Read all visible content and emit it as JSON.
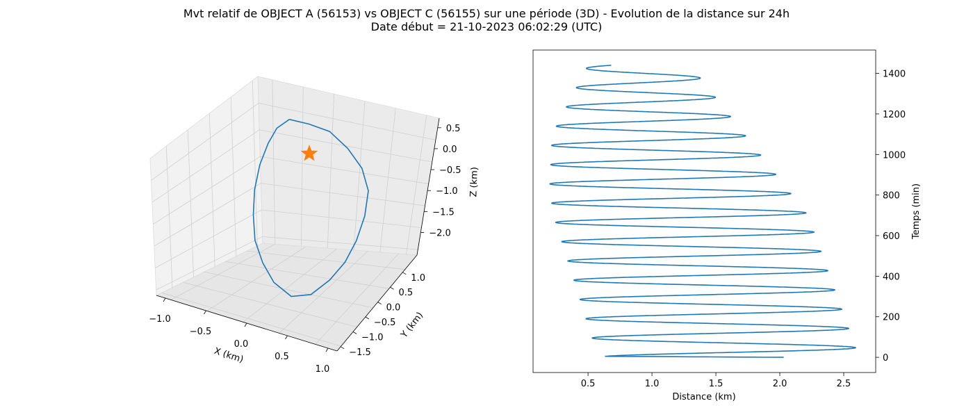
{
  "figure": {
    "title_line1": "Mvt relatif de OBJECT A (56153) vs OBJECT C (56155) sur une période (3D) - Evolution de la distance sur 24h",
    "title_line2": "Date début = 21-10-2023 06:02:29 (UTC)"
  },
  "colors": {
    "series": "#1f77b4",
    "marker": "#ff7f0e",
    "pane": "#f2f2f2",
    "grid": "#cfcfcf"
  },
  "chart_data": [
    {
      "type": "line3d",
      "xlabel": "X (km)",
      "ylabel": "Y (km)",
      "zlabel": "Z (km)",
      "x_ticks": [
        "−1.0",
        "−0.5",
        "0.0",
        "0.5",
        "1.0"
      ],
      "y_ticks": [
        "−1.5",
        "−1.0",
        "−0.5",
        "0.0",
        "0.5",
        "1.0"
      ],
      "z_ticks": [
        "0.5",
        "0.0",
        "−0.5",
        "−1.0",
        "−1.5",
        "−2.0"
      ],
      "xlim": [
        -1.1,
        1.1
      ],
      "ylim": [
        -1.7,
        1.1
      ],
      "zlim": [
        -2.3,
        0.6
      ],
      "marker_point": {
        "x": 0,
        "y": 0,
        "z": 0
      },
      "marker_symbol": "star",
      "trajectory": [
        {
          "x": -0.15,
          "y": -0.35,
          "z": 0.55
        },
        {
          "x": 0.05,
          "y": -0.38,
          "z": 0.5
        },
        {
          "x": 0.25,
          "y": -0.35,
          "z": 0.4
        },
        {
          "x": 0.42,
          "y": -0.28,
          "z": 0.15
        },
        {
          "x": 0.55,
          "y": -0.2,
          "z": -0.15
        },
        {
          "x": 0.6,
          "y": -0.1,
          "z": -0.5
        },
        {
          "x": 0.55,
          "y": 0.0,
          "z": -0.9
        },
        {
          "x": 0.45,
          "y": 0.12,
          "z": -1.3
        },
        {
          "x": 0.32,
          "y": 0.25,
          "z": -1.65
        },
        {
          "x": 0.15,
          "y": 0.38,
          "z": -1.95
        },
        {
          "x": -0.05,
          "y": 0.48,
          "z": -2.2
        },
        {
          "x": -0.25,
          "y": 0.52,
          "z": -2.25
        },
        {
          "x": -0.42,
          "y": 0.5,
          "z": -2.05
        },
        {
          "x": -0.52,
          "y": 0.42,
          "z": -1.75
        },
        {
          "x": -0.58,
          "y": 0.3,
          "z": -1.4
        },
        {
          "x": -0.58,
          "y": 0.18,
          "z": -1.0
        },
        {
          "x": -0.55,
          "y": 0.05,
          "z": -0.6
        },
        {
          "x": -0.48,
          "y": -0.08,
          "z": -0.2
        },
        {
          "x": -0.38,
          "y": -0.2,
          "z": 0.15
        },
        {
          "x": -0.28,
          "y": -0.3,
          "z": 0.4
        },
        {
          "x": -0.15,
          "y": -0.35,
          "z": 0.55
        }
      ]
    },
    {
      "type": "line",
      "xlabel": "Distance (km)",
      "ylabel": "Temps (min)",
      "x_ticks": [
        0.5,
        1.0,
        1.5,
        2.0,
        2.5
      ],
      "y_ticks": [
        0,
        200,
        400,
        600,
        800,
        1000,
        1200,
        1400
      ],
      "x_tick_labels": [
        "0.5",
        "1.0",
        "1.5",
        "2.0",
        "2.5"
      ],
      "y_tick_labels": [
        "0",
        "200",
        "400",
        "600",
        "800",
        "1000",
        "1200",
        "1400"
      ],
      "xlim": [
        0.07,
        2.75
      ],
      "ylim": [
        -75,
        1515
      ],
      "y_axis_side": "right",
      "grid": false,
      "period_min": 95.0,
      "start_distance": 2.03,
      "max_envelope": [
        [
          0,
          2.62
        ],
        [
          700,
          2.22
        ],
        [
          1440,
          1.3
        ]
      ],
      "min_envelope": [
        [
          0,
          0.58
        ],
        [
          700,
          0.23
        ],
        [
          830,
          0.2
        ],
        [
          1100,
          0.22
        ],
        [
          1440,
          0.5
        ]
      ],
      "end_time_min": 1440
    }
  ]
}
